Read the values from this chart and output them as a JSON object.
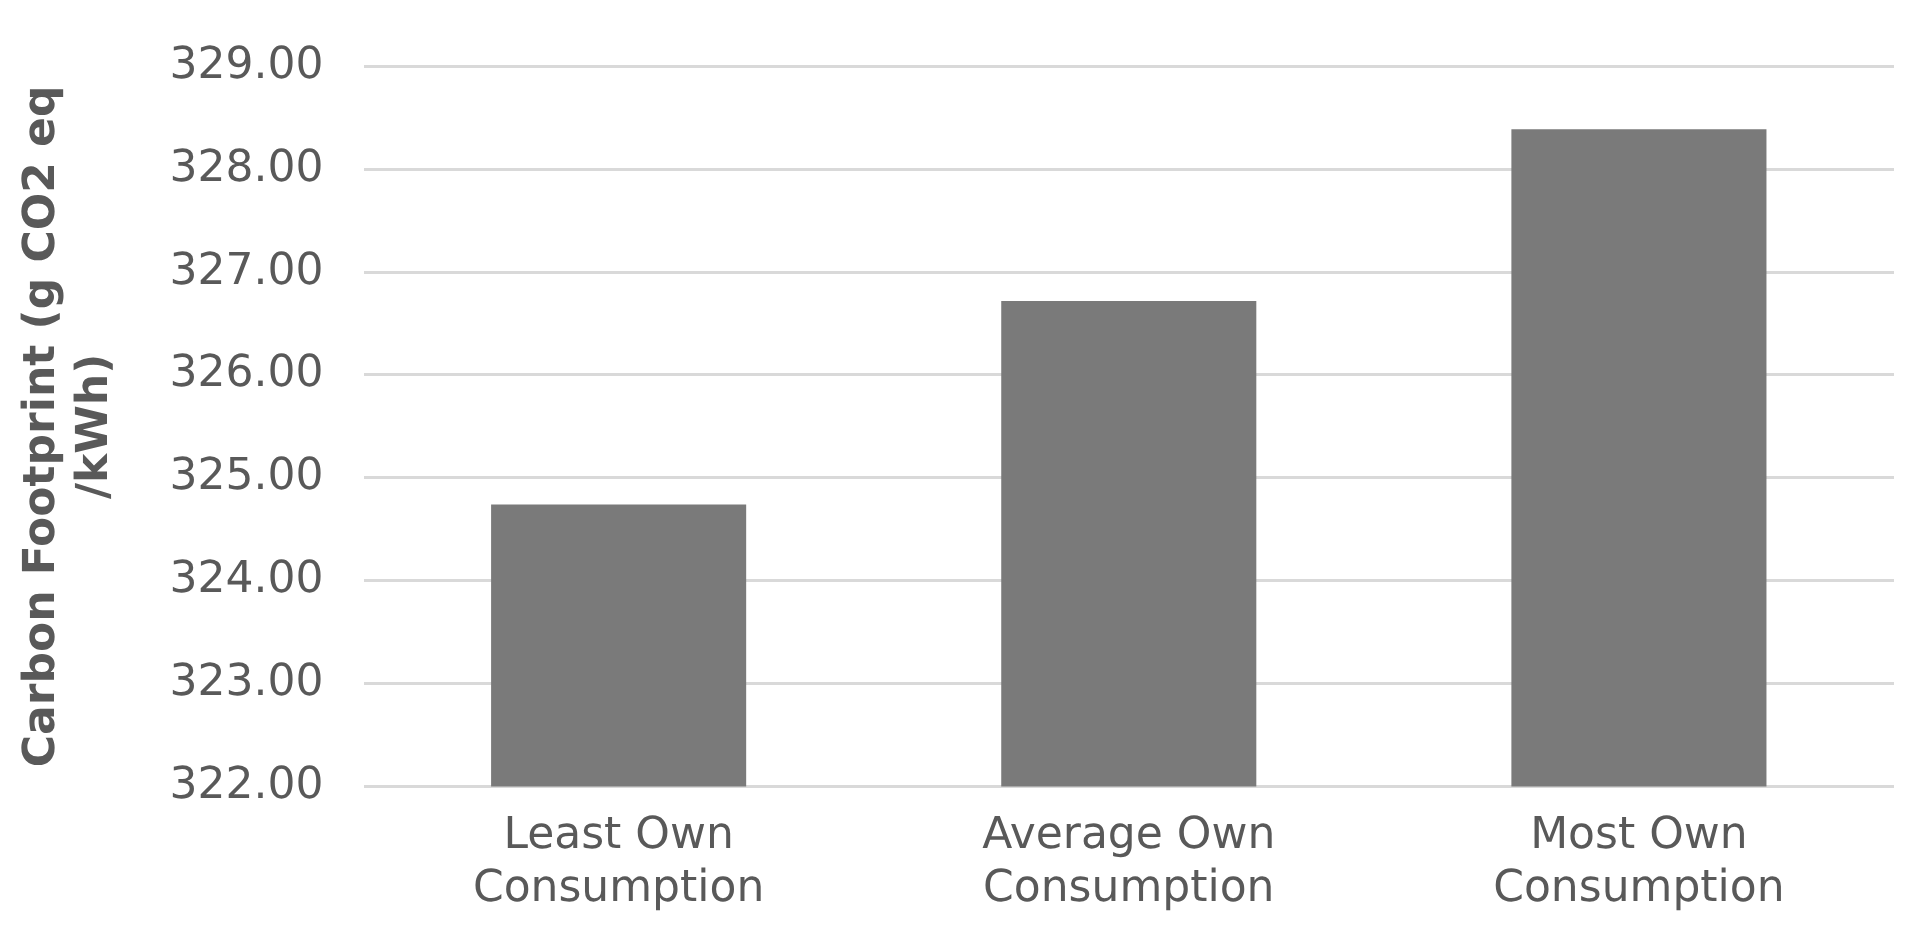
{
  "chart_data": {
    "type": "bar",
    "ylabel": "Carbon Footprint (g CO2 eq /kWh)",
    "categories": [
      "Least Own Consumption",
      "Average Own Consumption",
      "Most Own Consumption"
    ],
    "values": [
      324.74,
      326.72,
      328.39
    ],
    "color": "#7a7a7a",
    "ylim": [
      322,
      329
    ],
    "yticks": [
      {
        "value": 322,
        "label": "322.00"
      },
      {
        "value": 323,
        "label": "323.00"
      },
      {
        "value": 324,
        "label": "324.00"
      },
      {
        "value": 325,
        "label": "325.00"
      },
      {
        "value": 326,
        "label": "326.00"
      },
      {
        "value": 327,
        "label": "327.00"
      },
      {
        "value": 328,
        "label": "328.00"
      },
      {
        "value": 329,
        "label": "329.00"
      }
    ],
    "grid": "y",
    "legend": false
  }
}
